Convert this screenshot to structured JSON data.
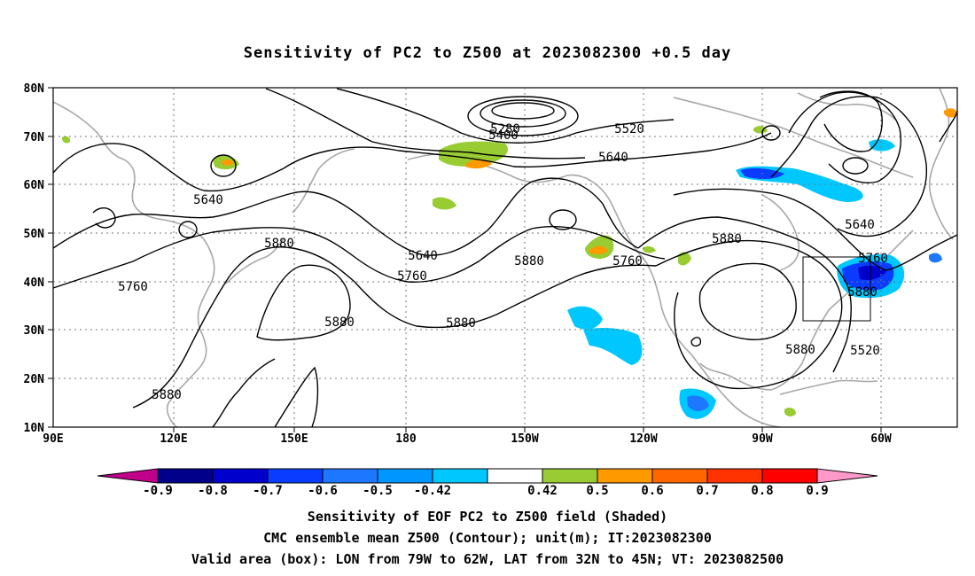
{
  "title": "Sensitivity of PC2 to Z500 at 2023082300 +0.5 day",
  "map": {
    "lat_ticks": [
      "80N",
      "70N",
      "60N",
      "50N",
      "40N",
      "30N",
      "20N",
      "10N"
    ],
    "lon_ticks": [
      "90E",
      "120E",
      "150E",
      "180",
      "150W",
      "120W",
      "90W",
      "60W"
    ],
    "contour_labels": [
      {
        "text": "5280"
      },
      {
        "text": "5400"
      },
      {
        "text": "5520"
      },
      {
        "text": "5640"
      },
      {
        "text": "5640"
      },
      {
        "text": "5640"
      },
      {
        "text": "5760"
      },
      {
        "text": "5760"
      },
      {
        "text": "5760"
      },
      {
        "text": "5880"
      },
      {
        "text": "5880"
      },
      {
        "text": "5880"
      },
      {
        "text": "5880"
      },
      {
        "text": "5880"
      },
      {
        "text": "5880"
      },
      {
        "text": "5880"
      },
      {
        "text": "5520"
      },
      {
        "text": "5640"
      },
      {
        "text": "5760"
      },
      {
        "text": "5880"
      }
    ],
    "valid_box": {
      "lon_range": [
        "79W",
        "62W"
      ],
      "lat_range": [
        "32N",
        "45N"
      ]
    }
  },
  "colorbar": {
    "labels": [
      "-0.9",
      "-0.8",
      "-0.7",
      "-0.6",
      "-0.5",
      "-0.42",
      "0.42",
      "0.5",
      "0.6",
      "0.7",
      "0.8",
      "0.9"
    ],
    "colors": [
      "#c0008a",
      "#00008b",
      "#0000cd",
      "#0a3cff",
      "#1e78ff",
      "#0096ff",
      "#00c8ff",
      "#ffffff",
      "#99cc33",
      "#ff9900",
      "#ff6600",
      "#ff3300",
      "#ff0000",
      "#ff99cc"
    ]
  },
  "captions": [
    "Sensitivity of EOF PC2 to Z500 field (Shaded)",
    "CMC ensemble mean Z500 (Contour); unit(m); IT:2023082300",
    "Valid area (box): LON from 79W to 62W, LAT from 32N to 45N; VT: 2023082500"
  ]
}
